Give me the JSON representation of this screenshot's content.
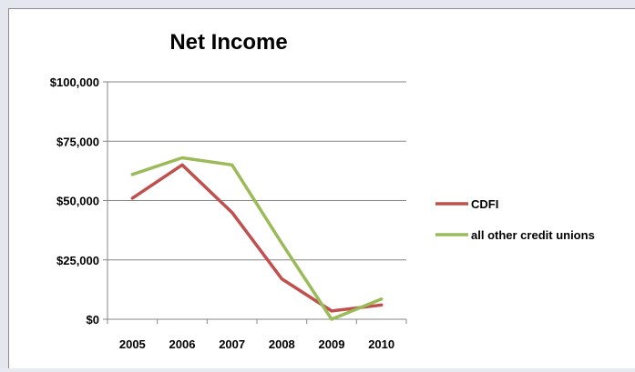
{
  "chart_data": {
    "type": "line",
    "title": "Net Income",
    "xlabel": "",
    "ylabel": "",
    "categories": [
      "2005",
      "2006",
      "2007",
      "2008",
      "2009",
      "2010"
    ],
    "ylim": [
      0,
      100000
    ],
    "yticks": [
      0,
      25000,
      50000,
      75000,
      100000
    ],
    "ytick_labels": [
      "$0",
      "$25,000",
      "$50,000",
      "$75,000",
      "$100,000"
    ],
    "grid": true,
    "legend_position": "right",
    "series": [
      {
        "name": "CDFI",
        "color": "#c0504d",
        "values": [
          51000,
          65000,
          45000,
          17000,
          3500,
          6000
        ]
      },
      {
        "name": "all other credit unions",
        "color": "#9bbb59",
        "values": [
          61000,
          68000,
          65000,
          32000,
          0,
          8500
        ]
      }
    ]
  }
}
